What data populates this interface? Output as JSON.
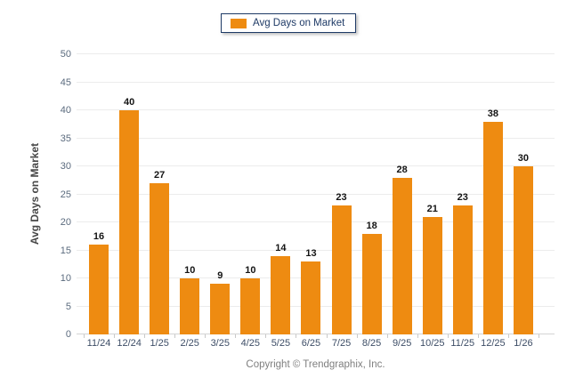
{
  "legend": {
    "label": "Avg Days on Market"
  },
  "footer": {
    "copyright": "Copyright © Trendgraphix, Inc."
  },
  "colors": {
    "bar": "#ee8b11",
    "legend_border": "#1e3a66",
    "gridline": "#ececec",
    "axis_line": "#d4d4d4",
    "value_label": "#141414",
    "x_tick_label": "#3d4d66",
    "y_tick_label": "#5b6b7e",
    "footer_text": "#7f7f7f"
  },
  "chart_data": {
    "type": "bar",
    "title": "",
    "xlabel": "",
    "ylabel": "Avg Days on Market",
    "categories": [
      "11/24",
      "12/24",
      "1/25",
      "2/25",
      "3/25",
      "4/25",
      "5/25",
      "6/25",
      "7/25",
      "8/25",
      "9/25",
      "10/25",
      "11/25",
      "12/25",
      "1/26"
    ],
    "values": [
      16,
      40,
      27,
      10,
      9,
      10,
      14,
      13,
      23,
      18,
      28,
      21,
      23,
      38,
      30
    ],
    "ylim": [
      0,
      50
    ],
    "yticks": [
      0,
      5,
      10,
      15,
      20,
      25,
      30,
      35,
      40,
      45,
      50
    ],
    "grid": true,
    "legend_position": "top-center",
    "legend_entries": [
      "Avg Days on Market"
    ],
    "value_labels": true,
    "bar_color": "#ee8b11"
  }
}
